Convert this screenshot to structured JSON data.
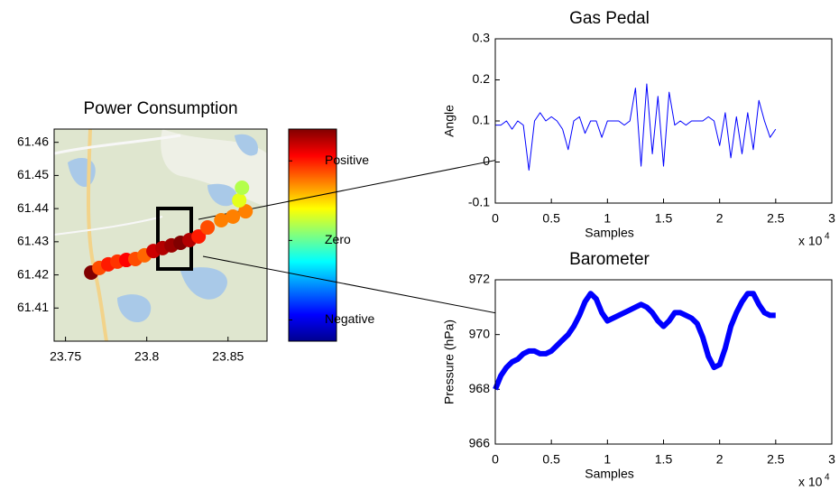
{
  "chart_data": [
    {
      "type": "scatter",
      "title": "Power Consumption",
      "x": [
        23.7658,
        23.7708,
        23.7763,
        23.7819,
        23.7874,
        23.793,
        23.7986,
        23.8041,
        23.8097,
        23.8152,
        23.8208,
        23.8263,
        23.8319,
        23.8374,
        23.8458,
        23.853,
        23.8608,
        23.8569,
        23.8586
      ],
      "values": [
        61.4207,
        61.4221,
        61.4232,
        61.424,
        61.4245,
        61.4248,
        61.4259,
        61.4272,
        61.4281,
        61.4289,
        61.4297,
        61.4305,
        61.4316,
        61.4343,
        61.4365,
        61.4376,
        61.4392,
        61.4425,
        61.4463
      ],
      "color_values": [
        1.0,
        0.6,
        0.7,
        0.65,
        0.75,
        0.6,
        0.55,
        0.85,
        0.9,
        0.95,
        1.0,
        0.9,
        0.7,
        0.6,
        0.5,
        0.5,
        0.5,
        0.2,
        0.1
      ],
      "colormap": "jet",
      "clim": [
        -1,
        1
      ],
      "colorbar_ticks": [
        {
          "value": 0.7,
          "label": "Positive"
        },
        {
          "value": -0.05,
          "label": "Zero"
        },
        {
          "value": -0.8,
          "label": "Negative"
        }
      ],
      "xlim": [
        23.743,
        23.874
      ],
      "ylim": [
        61.4,
        61.464
      ],
      "xticks": [
        23.75,
        23.8,
        23.85
      ],
      "yticks": [
        61.41,
        61.42,
        61.43,
        61.44,
        61.45,
        61.46
      ]
    },
    {
      "type": "line",
      "title": "Gas Pedal",
      "xlabel": "Samples",
      "ylabel": "Angle",
      "x_scale": {
        "base": "x 10",
        "exponent": 4
      },
      "x": [
        0,
        500,
        1000,
        1500,
        2000,
        2500,
        3000,
        3500,
        4000,
        4500,
        5000,
        5500,
        6000,
        6500,
        7000,
        7500,
        8000,
        8500,
        9000,
        9500,
        10000,
        10500,
        11000,
        11500,
        12000,
        12500,
        13000,
        13500,
        14000,
        14500,
        15000,
        15500,
        16000,
        16500,
        17000,
        17500,
        18000,
        18500,
        19000,
        19500,
        20000,
        20500,
        21000,
        21500,
        22000,
        22500,
        23000,
        23500,
        24000,
        24500,
        25000
      ],
      "values": [
        0.09,
        0.09,
        0.1,
        0.08,
        0.1,
        0.09,
        -0.02,
        0.1,
        0.12,
        0.1,
        0.11,
        0.1,
        0.08,
        0.03,
        0.1,
        0.11,
        0.07,
        0.1,
        0.1,
        0.06,
        0.1,
        0.1,
        0.1,
        0.09,
        0.1,
        0.18,
        -0.01,
        0.19,
        0.02,
        0.16,
        -0.01,
        0.17,
        0.09,
        0.1,
        0.09,
        0.1,
        0.1,
        0.1,
        0.11,
        0.1,
        0.04,
        0.12,
        0.01,
        0.11,
        0.02,
        0.12,
        0.03,
        0.15,
        0.1,
        0.06,
        0.08
      ],
      "color": "#0000ff",
      "line_width": 1,
      "xlim": [
        0,
        30000
      ],
      "ylim": [
        -0.1,
        0.3
      ],
      "xticks": [
        0,
        {
          "value": 5000,
          "label": "0.5"
        },
        {
          "value": 10000,
          "label": "1"
        },
        {
          "value": 15000,
          "label": "1.5"
        },
        {
          "value": 20000,
          "label": "2"
        },
        {
          "value": 25000,
          "label": "2.5"
        },
        {
          "value": 30000,
          "label": "3"
        }
      ],
      "yticks": [
        -0.1,
        0,
        0.1,
        0.2,
        0.3
      ]
    },
    {
      "type": "line",
      "title": "Barometer",
      "xlabel": "Samples",
      "ylabel": "Pressure (hPa)",
      "x_scale": {
        "base": "x 10",
        "exponent": 4
      },
      "x": [
        0,
        500,
        1000,
        1500,
        2000,
        2500,
        3000,
        3500,
        4000,
        4500,
        5000,
        5500,
        6000,
        6500,
        7000,
        7500,
        8000,
        8500,
        9000,
        9500,
        10000,
        10500,
        11000,
        11500,
        12000,
        12500,
        13000,
        13500,
        14000,
        14500,
        15000,
        15500,
        16000,
        16500,
        17000,
        17500,
        18000,
        18500,
        19000,
        19500,
        20000,
        20500,
        21000,
        21500,
        22000,
        22500,
        23000,
        23500,
        24000,
        24500,
        25000
      ],
      "values": [
        968,
        968.5,
        968.8,
        969,
        969.1,
        969.3,
        969.4,
        969.4,
        969.3,
        969.3,
        969.4,
        969.6,
        969.8,
        970,
        970.3,
        970.7,
        971.2,
        971.5,
        971.3,
        970.8,
        970.5,
        970.6,
        970.7,
        970.8,
        970.9,
        971,
        971.1,
        971,
        970.8,
        970.5,
        970.3,
        970.5,
        970.8,
        970.8,
        970.7,
        970.6,
        970.4,
        969.9,
        969.2,
        968.8,
        968.9,
        969.5,
        970.3,
        970.8,
        971.2,
        971.5,
        971.5,
        971.1,
        970.8,
        970.7,
        970.7
      ],
      "color": "#0000ff",
      "line_width": 6,
      "xlim": [
        0,
        30000
      ],
      "ylim": [
        966,
        972
      ],
      "xticks": [
        0,
        {
          "value": 5000,
          "label": "0.5"
        },
        {
          "value": 10000,
          "label": "1"
        },
        {
          "value": 15000,
          "label": "1.5"
        },
        {
          "value": 20000,
          "label": "2"
        },
        {
          "value": 25000,
          "label": "2.5"
        },
        {
          "value": 30000,
          "label": "3"
        }
      ],
      "yticks": [
        966,
        968,
        970,
        972
      ]
    }
  ]
}
